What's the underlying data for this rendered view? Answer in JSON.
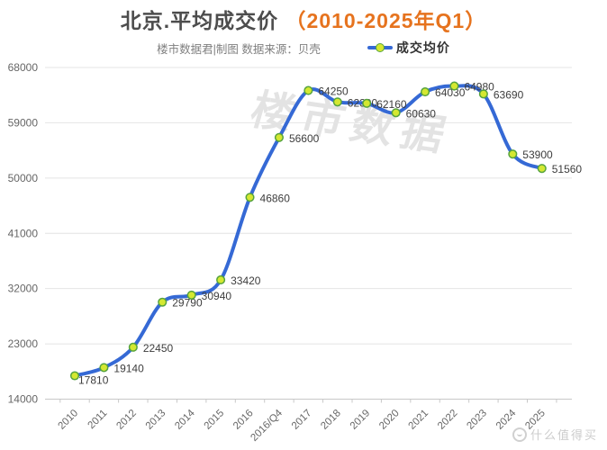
{
  "header": {
    "title_main": "北京.平均成交价",
    "title_range": "（2010-2025年Q1）",
    "subtitle": "楼市数据君|制图  数据来源：贝壳",
    "legend_label": "成交均价"
  },
  "watermarks": {
    "center": "楼市数据",
    "bottom_right": "什么值得买"
  },
  "colors": {
    "line": "#3569d5",
    "marker_fill": "#d4e831",
    "marker_stroke": "#56a33e",
    "grid": "#e4e4e4",
    "axis_line": "#c8c8c8",
    "axis_text": "#666666",
    "label_text": "#3d3d3d"
  },
  "chart_data": {
    "type": "line",
    "smooth": true,
    "title": "北京.平均成交价（2010-2025年Q1）",
    "legend": [
      "成交均价"
    ],
    "legend_position": "top",
    "grid": true,
    "categories": [
      "2010",
      "2011",
      "2012",
      "2013",
      "2014",
      "2015",
      "2016",
      "2016/Q4",
      "2017",
      "2018",
      "2019",
      "2020",
      "2021",
      "2022",
      "2023",
      "2024",
      "2025"
    ],
    "series": [
      {
        "name": "成交均价",
        "values": [
          17810,
          19140,
          22450,
          29790,
          30940,
          33420,
          46860,
          56600,
          64250,
          62390,
          62160,
          60630,
          64030,
          64980,
          63690,
          53900,
          51560
        ]
      }
    ],
    "ylim": [
      14000,
      68000
    ],
    "yticks": [
      14000,
      23000,
      32000,
      41000,
      50000,
      59000,
      68000
    ],
    "xlabel": "",
    "ylabel": ""
  }
}
